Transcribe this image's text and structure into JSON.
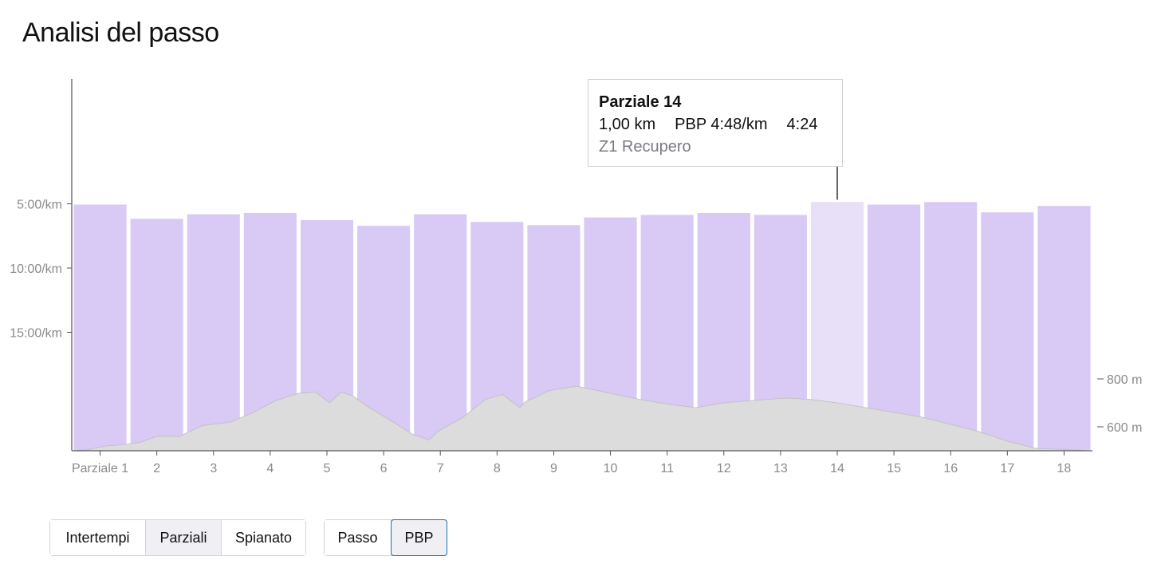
{
  "title": "Analisi del passo",
  "tooltip": {
    "title": "Parziale 14",
    "distance": "1,00 km",
    "pace": "PBP 4:48/km",
    "time": "4:24",
    "zone": "Z1 Recupero"
  },
  "controls": {
    "group1": [
      {
        "label": "Intertempi",
        "selected": false
      },
      {
        "label": "Parziali",
        "selected": true
      },
      {
        "label": "Spianato",
        "selected": false
      }
    ],
    "group2": [
      {
        "label": "Passo",
        "selected": false
      },
      {
        "label": "PBP",
        "selected": true
      }
    ]
  },
  "colors": {
    "bar": "#d9c9f5",
    "bar_highlight": "#e8dff8",
    "elevation": "#dcdcdc",
    "axis": "#555555",
    "tick_text": "#8a8a8a",
    "selected_border": "#1a73b8"
  },
  "chart_data": {
    "type": "bar",
    "categories": [
      "Parziale 1",
      "2",
      "3",
      "4",
      "5",
      "6",
      "7",
      "8",
      "9",
      "10",
      "11",
      "12",
      "13",
      "14",
      "15",
      "16",
      "17",
      "18"
    ],
    "y_ticks": [
      {
        "value": 5,
        "label": "5:00/km"
      },
      {
        "value": 10,
        "label": "10:00/km"
      },
      {
        "value": 15,
        "label": "15:00/km"
      }
    ],
    "series": [
      {
        "values": [
          5.0,
          6.1,
          5.75,
          5.65,
          6.2,
          6.65,
          5.75,
          6.35,
          6.6,
          6.0,
          5.8,
          5.65,
          5.8,
          4.8,
          5.0,
          4.8,
          5.6,
          5.1
        ]
      }
    ],
    "highlighted_index": 13,
    "elevation": {
      "unit": "m",
      "y_ticks": [
        {
          "value": 800,
          "label": "800 m"
        },
        {
          "value": 600,
          "label": "600 m"
        }
      ],
      "x_km": [
        0,
        0.3,
        0.6,
        0.9,
        1.2,
        1.5,
        1.9,
        2.3,
        2.8,
        3.2,
        3.6,
        4.0,
        4.3,
        4.55,
        4.75,
        4.95,
        5.25,
        5.6,
        6.0,
        6.3,
        6.45,
        6.6,
        6.9,
        7.3,
        7.6,
        7.9,
        8.0,
        8.15,
        8.4,
        8.9,
        9.1,
        9.5,
        10.0,
        10.5,
        11.0,
        11.5,
        12.0,
        12.6,
        13.0,
        13.5,
        14.0,
        14.5,
        15.0,
        15.5,
        16.0,
        16.5,
        17.0,
        17.5,
        18.0
      ],
      "elevation_m": [
        500,
        505,
        520,
        525,
        535,
        560,
        560,
        605,
        620,
        660,
        710,
        740,
        745,
        700,
        745,
        730,
        680,
        630,
        570,
        545,
        580,
        600,
        640,
        715,
        735,
        680,
        705,
        720,
        750,
        770,
        760,
        740,
        715,
        695,
        680,
        700,
        710,
        720,
        715,
        700,
        680,
        660,
        640,
        610,
        580,
        540,
        510,
        505,
        500
      ]
    }
  }
}
